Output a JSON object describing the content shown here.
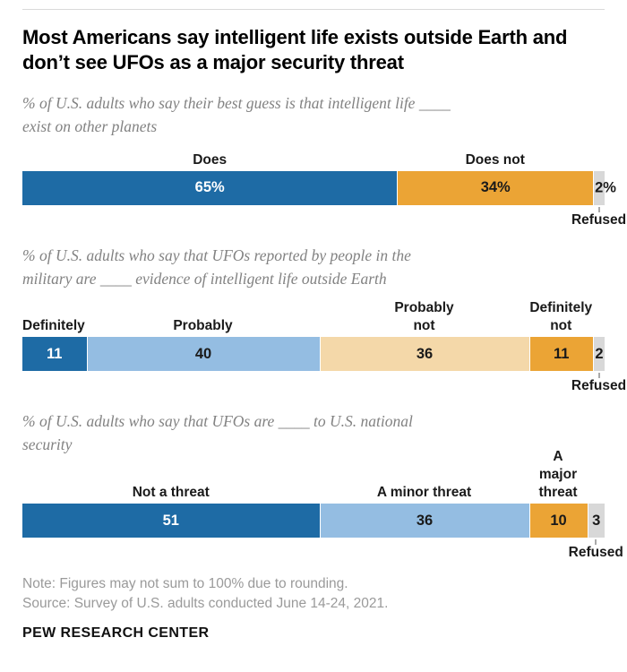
{
  "header": {
    "title": "Most Americans say intelligent life exists outside Earth and don’t see UFOs as a major security threat"
  },
  "colors": {
    "dark_blue": "#1e6ba5",
    "light_blue": "#94bde2",
    "tan": "#f4d8a9",
    "orange": "#eba435",
    "gray": "#d8d8d8",
    "white_text": "#ffffff",
    "dark_text": "#1a1a1a"
  },
  "chart_data": [
    {
      "type": "bar",
      "stacked": true,
      "orientation": "horizontal",
      "subtitle": "% of U.S. adults who say their best guess is that intelligent life ____\nexist on other planets",
      "categories": [
        "Does",
        "Does not",
        "Refused"
      ],
      "values": [
        65,
        34,
        2
      ],
      "segments": [
        {
          "category": "Does",
          "value": 65,
          "display": "65%",
          "color_key": "dark_blue",
          "value_color": "white"
        },
        {
          "category": "Does not",
          "value": 34,
          "display": "34%",
          "color_key": "orange",
          "value_color": "dark"
        },
        {
          "category": "Refused",
          "value": 2,
          "display": "2%",
          "color_key": "gray",
          "value_color": "dark",
          "refused_below": true,
          "value_outside": true
        }
      ]
    },
    {
      "type": "bar",
      "stacked": true,
      "orientation": "horizontal",
      "subtitle": "% of U.S. adults who say that UFOs reported by people in the\nmilitary are ____ evidence of intelligent life outside Earth",
      "categories": [
        "Definitely",
        "Probably",
        "Probably not",
        "Definitely not",
        "Refused"
      ],
      "values": [
        11,
        40,
        36,
        11,
        2
      ],
      "segments": [
        {
          "category": "Definitely",
          "value": 11,
          "display": "11",
          "color_key": "dark_blue",
          "value_color": "white",
          "label_align": "left-edge"
        },
        {
          "category": "Probably",
          "value": 40,
          "display": "40",
          "color_key": "light_blue",
          "value_color": "dark"
        },
        {
          "category": "Probably\nnot",
          "value": 36,
          "display": "36",
          "color_key": "tan",
          "value_color": "dark"
        },
        {
          "category": "Definitely\nnot",
          "value": 11,
          "display": "11",
          "color_key": "orange",
          "value_color": "dark"
        },
        {
          "category": "Refused",
          "value": 2,
          "display": "2",
          "color_key": "gray",
          "value_color": "dark",
          "refused_below": true
        }
      ]
    },
    {
      "type": "bar",
      "stacked": true,
      "orientation": "horizontal",
      "subtitle": "% of U.S. adults who say that UFOs are ____ to U.S. national\nsecurity",
      "categories": [
        "Not a threat",
        "A minor threat",
        "A major threat",
        "Refused"
      ],
      "values": [
        51,
        36,
        10,
        3
      ],
      "segments": [
        {
          "category": "Not a threat",
          "value": 51,
          "display": "51",
          "color_key": "dark_blue",
          "value_color": "white"
        },
        {
          "category": "A minor threat",
          "value": 36,
          "display": "36",
          "color_key": "light_blue",
          "value_color": "dark"
        },
        {
          "category": "A major\nthreat",
          "value": 10,
          "display": "10",
          "color_key": "orange",
          "value_color": "dark"
        },
        {
          "category": "Refused",
          "value": 3,
          "display": "3",
          "color_key": "gray",
          "value_color": "dark",
          "refused_below": true
        }
      ]
    }
  ],
  "footer": {
    "note": "Note: Figures may not sum to 100% due to rounding.",
    "source": "Source: Survey of U.S. adults conducted June 14-24, 2021.",
    "brand": "PEW RESEARCH CENTER"
  }
}
